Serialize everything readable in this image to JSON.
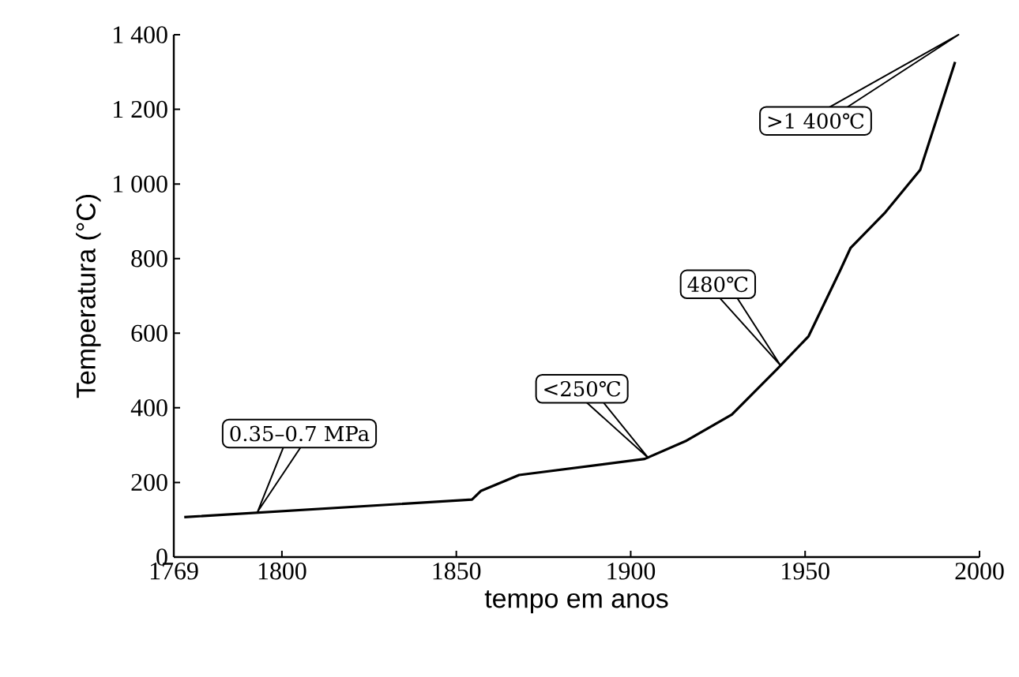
{
  "chart_data": {
    "type": "line",
    "xlabel": "tempo em anos",
    "ylabel": "Temperatura (°C)",
    "x": [
      1772,
      1854.5,
      1857,
      1868,
      1904,
      1916,
      1929,
      1942,
      1951,
      1960,
      1963,
      1973,
      1983,
      1993
    ],
    "series": [
      {
        "color": "#000000",
        "values": [
          107,
          154,
          177,
          220,
          263,
          312,
          382,
          504,
          592,
          767,
          828,
          924,
          1038,
          1327
        ]
      }
    ],
    "xlim": [
      1769,
      2000
    ],
    "xticks": [
      1769,
      1800,
      1850,
      1900,
      1950,
      2000
    ],
    "ylim": [
      0,
      1400
    ],
    "yticks": [
      0,
      200,
      400,
      600,
      800,
      {
        "value": 1000,
        "label": "1 000"
      },
      {
        "value": 1200,
        "label": "1 200"
      },
      {
        "value": 1400,
        "label": "1 400"
      }
    ],
    "annotations": [
      "0.35–0.7 MPa",
      "<250℃",
      "480℃",
      ">1 400℃"
    ],
    "grid": false,
    "marker": "none",
    "line_style": "solid"
  }
}
